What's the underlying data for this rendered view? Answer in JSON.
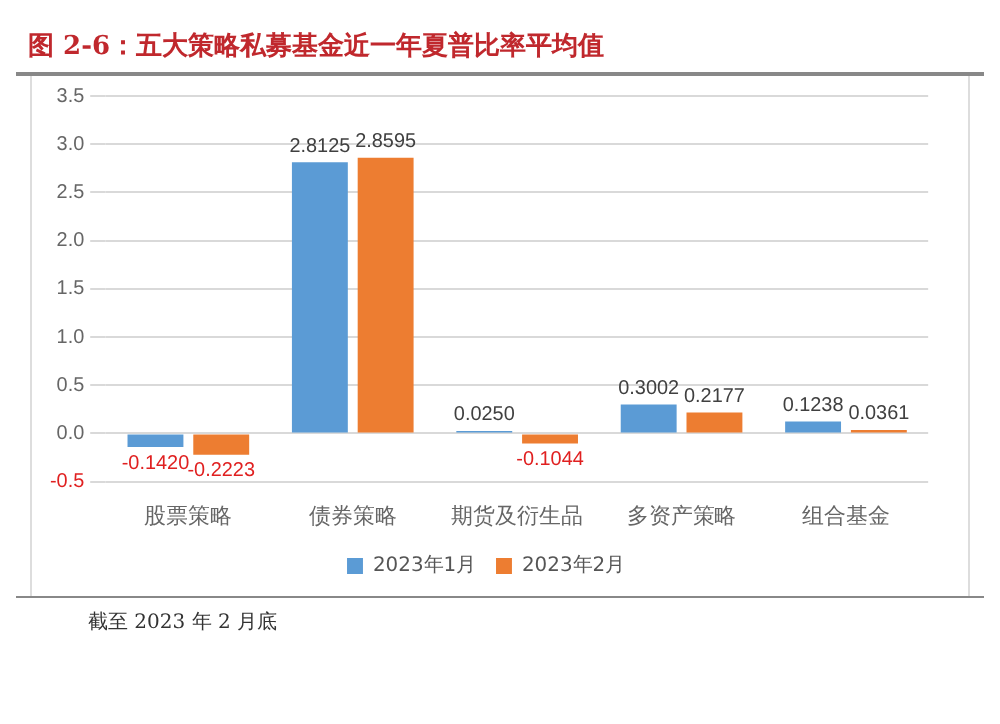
{
  "chart_data": {
    "type": "bar",
    "title": "图 2-6：五大策略私募基金近一年夏普比率平均值",
    "categories": [
      "股票策略",
      "债券策略",
      "期货及衍生品",
      "多资产策略",
      "组合基金"
    ],
    "series": [
      {
        "name": "2023年1月",
        "color": "#5b9bd5",
        "values": [
          -0.142,
          2.8125,
          0.025,
          0.3002,
          0.1238
        ],
        "value_labels": [
          "-0.1420",
          "2.8125",
          "0.0250",
          "0.3002",
          "0.1238"
        ]
      },
      {
        "name": "2023年2月",
        "color": "#ed7d31",
        "values": [
          -0.2223,
          2.8595,
          -0.1044,
          0.2177,
          0.0361
        ],
        "value_labels": [
          "-0.2223",
          "2.8595",
          "-0.1044",
          "0.2177",
          "0.0361"
        ]
      }
    ],
    "ylim": [
      -0.5,
      3.5
    ],
    "yticks": [
      {
        "value": -0.5,
        "label": "-0.5"
      },
      {
        "value": 0,
        "label": "0.0"
      },
      {
        "value": 0.5,
        "label": "0.5"
      },
      {
        "value": 1,
        "label": "1.0"
      },
      {
        "value": 1.5,
        "label": "1.5"
      },
      {
        "value": 2,
        "label": "2.0"
      },
      {
        "value": 2.5,
        "label": "2.5"
      },
      {
        "value": 3,
        "label": "3.0"
      },
      {
        "value": 3.5,
        "label": "3.5"
      }
    ],
    "grid": "y",
    "legend": "bottom",
    "annotations": [
      "截至 2023 年 2 月底"
    ]
  }
}
